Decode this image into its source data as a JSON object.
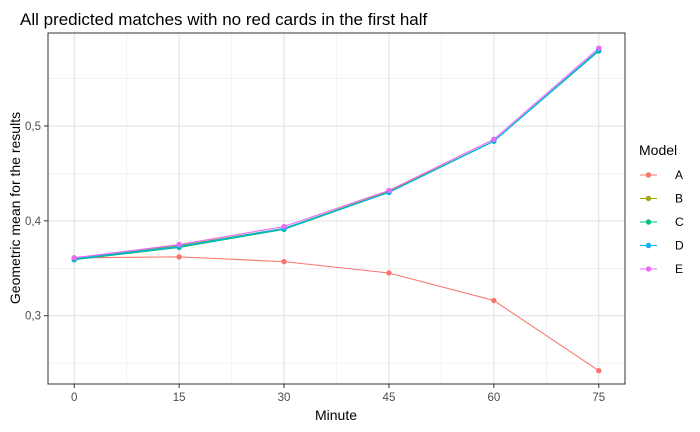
{
  "chart_data": {
    "type": "line",
    "title": "All predicted matches with no red cards in the first half",
    "xlabel": "Minute",
    "ylabel": "Geometric mean for the results",
    "x": [
      0,
      15,
      30,
      45,
      60,
      75
    ],
    "x_ticks": [
      "0",
      "15",
      "30",
      "45",
      "60",
      "75"
    ],
    "y_ticks": [
      "0,3",
      "0,4",
      "0,5"
    ],
    "xlim": [
      -3.75,
      78.75
    ],
    "ylim": [
      0.228,
      0.598
    ],
    "grid": true,
    "legend_title": "Model",
    "legend_position": "right",
    "series": [
      {
        "name": "A",
        "color": "#F8766D",
        "values": [
          0.361,
          0.362,
          0.357,
          0.345,
          0.316,
          0.242
        ]
      },
      {
        "name": "B",
        "color": "#A3A500",
        "values": [
          0.36,
          0.374,
          0.392,
          0.431,
          0.484,
          0.58
        ]
      },
      {
        "name": "C",
        "color": "#00BF7D",
        "values": [
          0.359,
          0.372,
          0.391,
          0.43,
          0.484,
          0.579
        ]
      },
      {
        "name": "D",
        "color": "#00B0F6",
        "values": [
          0.36,
          0.373,
          0.392,
          0.43,
          0.484,
          0.58
        ]
      },
      {
        "name": "E",
        "color": "#E76BF3",
        "values": [
          0.361,
          0.375,
          0.394,
          0.432,
          0.486,
          0.582
        ]
      }
    ]
  }
}
